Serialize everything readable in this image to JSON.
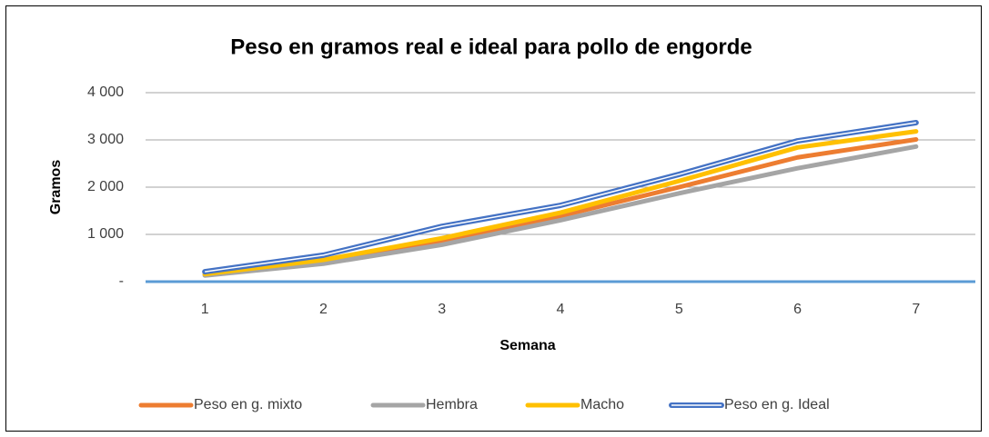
{
  "chart_data": {
    "type": "line",
    "title": "Peso en gramos real e ideal para pollo de engorde",
    "x_label": "Semana",
    "y_label": "Gramos",
    "categories": [
      "1",
      "2",
      "3",
      "4",
      "5",
      "6",
      "7"
    ],
    "series": [
      {
        "name": "Peso en g. mixto",
        "color": "#ed7d31",
        "values": [
          150,
          420,
          860,
          1390,
          2000,
          2630,
          3010
        ]
      },
      {
        "name": "Hembra",
        "color": "#a5a5a5",
        "values": [
          130,
          380,
          780,
          1300,
          1870,
          2400,
          2860
        ]
      },
      {
        "name": "Macho",
        "color": "#ffc000",
        "values": [
          160,
          460,
          920,
          1460,
          2130,
          2840,
          3180
        ]
      },
      {
        "name": "Peso en g. Ideal",
        "color": "#4472c4",
        "values": [
          210,
          560,
          1170,
          1615,
          2270,
          2980,
          3365
        ]
      }
    ],
    "ylim": [
      0,
      4000
    ],
    "yticks": [
      {
        "value": 0,
        "label": "-"
      },
      {
        "value": 1000,
        "label": "1 000"
      },
      {
        "value": 2000,
        "label": "2 000"
      },
      {
        "value": 3000,
        "label": "3 000"
      },
      {
        "value": 4000,
        "label": "4 000"
      }
    ],
    "grid": true,
    "legend": "bottom"
  }
}
